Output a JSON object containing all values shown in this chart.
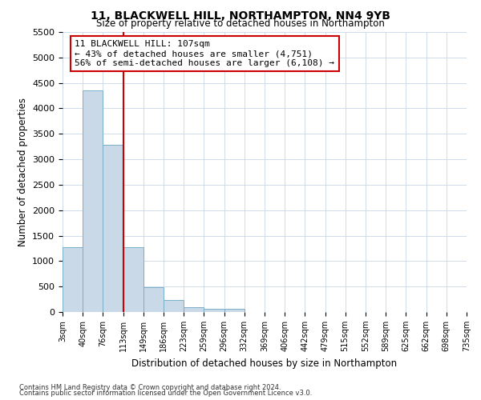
{
  "title1": "11, BLACKWELL HILL, NORTHAMPTON, NN4 9YB",
  "title2": "Size of property relative to detached houses in Northampton",
  "xlabel": "Distribution of detached houses by size in Northampton",
  "ylabel": "Number of detached properties",
  "footnote1": "Contains HM Land Registry data © Crown copyright and database right 2024.",
  "footnote2": "Contains public sector information licensed under the Open Government Licence v3.0.",
  "annotation_line1": "11 BLACKWELL HILL: 107sqm",
  "annotation_line2": "← 43% of detached houses are smaller (4,751)",
  "annotation_line3": "56% of semi-detached houses are larger (6,108) →",
  "property_size_bin": 2,
  "bar_color": "#c9d9e8",
  "bar_edge_color": "#7aafc8",
  "vline_color": "#cc0000",
  "annotation_box_edge": "#cc0000",
  "annotation_box_face": "white",
  "ylim": [
    0,
    5500
  ],
  "yticks": [
    0,
    500,
    1000,
    1500,
    2000,
    2500,
    3000,
    3500,
    4000,
    4500,
    5000,
    5500
  ],
  "bin_edges": [
    3,
    40,
    76,
    113,
    149,
    186,
    223,
    259,
    296,
    332,
    369,
    406,
    442,
    479,
    515,
    552,
    589,
    625,
    662,
    698,
    735
  ],
  "bin_labels": [
    "3sqm",
    "40sqm",
    "76sqm",
    "113sqm",
    "149sqm",
    "186sqm",
    "223sqm",
    "259sqm",
    "296sqm",
    "332sqm",
    "369sqm",
    "406sqm",
    "442sqm",
    "479sqm",
    "515sqm",
    "552sqm",
    "589sqm",
    "625sqm",
    "662sqm",
    "698sqm",
    "735sqm"
  ],
  "bar_heights": [
    1270,
    4350,
    3280,
    1280,
    480,
    230,
    100,
    65,
    60,
    0,
    0,
    0,
    0,
    0,
    0,
    0,
    0,
    0,
    0,
    0
  ],
  "vline_x": 113
}
